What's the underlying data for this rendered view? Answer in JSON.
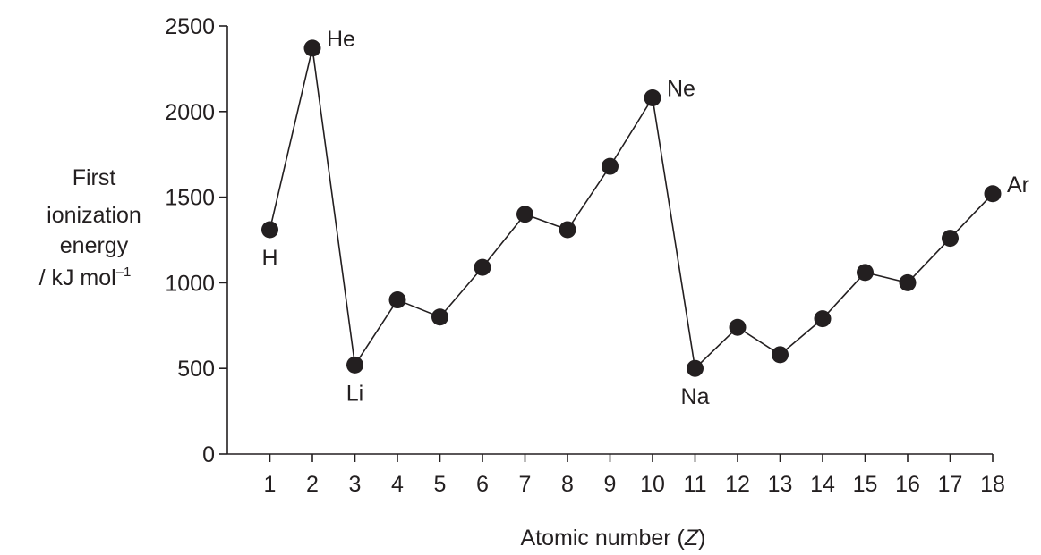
{
  "chart_data": {
    "type": "line",
    "x": [
      1,
      2,
      3,
      4,
      5,
      6,
      7,
      8,
      9,
      10,
      11,
      12,
      13,
      14,
      15,
      16,
      17,
      18
    ],
    "series": [
      {
        "values": [
          1310,
          2370,
          520,
          900,
          800,
          1090,
          1400,
          1310,
          1680,
          2080,
          500,
          740,
          580,
          790,
          1060,
          1000,
          1260,
          1520
        ]
      }
    ],
    "point_labels": [
      {
        "x": 1,
        "text": "H",
        "pos": "below"
      },
      {
        "x": 2,
        "text": "He",
        "pos": "right"
      },
      {
        "x": 3,
        "text": "Li",
        "pos": "below"
      },
      {
        "x": 10,
        "text": "Ne",
        "pos": "right"
      },
      {
        "x": 11,
        "text": "Na",
        "pos": "below"
      },
      {
        "x": 18,
        "text": "Ar",
        "pos": "right"
      }
    ],
    "xlabel_pre": "Atomic number (",
    "xlabel_var": "Z",
    "xlabel_post": ")",
    "ylabel_lines": [
      "First",
      "ionization",
      "energy"
    ],
    "ylabel_unit": "/ kJ mol",
    "ylabel_unit_sup": "–1",
    "xlim": [
      0,
      18
    ],
    "ylim": [
      0,
      2500
    ],
    "yticks": [
      0,
      500,
      1000,
      1500,
      2000,
      2500
    ],
    "xticks": [
      1,
      2,
      3,
      4,
      5,
      6,
      7,
      8,
      9,
      10,
      11,
      12,
      13,
      14,
      15,
      16,
      17,
      18
    ],
    "grid": false,
    "color": "#231f20"
  }
}
